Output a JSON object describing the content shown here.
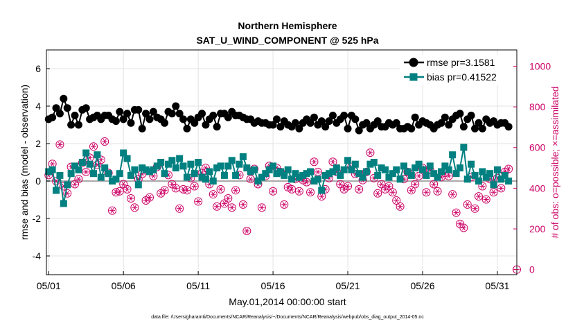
{
  "chart_data": {
    "type": "line",
    "title": "Northern Hemisphere",
    "subtitle": "SAT_U_WIND_COMPONENT @ 525 hPa",
    "xlabel": "May.01,2014 00:00:00 start",
    "ylabel_left": "rmse and bias (model - observation)",
    "ylabel_right": "# of obs: o=possible; ×=assimilated",
    "footnote": "data file: /Users/gharamti/Documents/NCAR/Reanalysis/~/Documents/NCAR/Reanalysis/webpub/obs_diag_output_2014-05.nc",
    "xlim": [
      0.85,
      32.3
    ],
    "x_ticks": [
      1,
      6,
      11,
      16,
      21,
      26,
      31
    ],
    "x_tick_labels": [
      "05/01",
      "05/06",
      "05/11",
      "05/16",
      "05/21",
      "05/26",
      "05/31"
    ],
    "ylim_left": [
      -5,
      7
    ],
    "y_ticks_left": [
      -4,
      -2,
      0,
      2,
      4,
      6
    ],
    "ylim_right": [
      -25,
      1080
    ],
    "y_ticks_right": [
      0,
      200,
      400,
      600,
      800,
      1000
    ],
    "grid": true,
    "legend_position": "top-right",
    "colors": {
      "rmse": "#000000",
      "bias": "#008080",
      "obs": "#cc0066",
      "zero_line": "#aaaaaa"
    },
    "series": [
      {
        "name": "rmse pr=3.1581",
        "axis": "left",
        "marker": "circle",
        "x": [
          1.0,
          1.25,
          1.5,
          1.75,
          2.0,
          2.25,
          2.5,
          2.75,
          3.0,
          3.25,
          3.5,
          3.75,
          4.0,
          4.25,
          4.5,
          4.75,
          5.0,
          5.25,
          5.5,
          5.75,
          6.0,
          6.25,
          6.5,
          6.75,
          7.0,
          7.25,
          7.5,
          7.75,
          8.0,
          8.25,
          8.5,
          8.75,
          9.0,
          9.25,
          9.5,
          9.75,
          10.0,
          10.25,
          10.5,
          10.75,
          11.0,
          11.25,
          11.5,
          11.75,
          12.0,
          12.25,
          12.5,
          12.75,
          13.0,
          13.25,
          13.5,
          13.75,
          14.0,
          14.25,
          14.5,
          14.75,
          15.0,
          15.25,
          15.5,
          15.75,
          16.0,
          16.25,
          16.5,
          16.75,
          17.0,
          17.25,
          17.5,
          17.75,
          18.0,
          18.25,
          18.5,
          18.75,
          19.0,
          19.25,
          19.5,
          19.75,
          20.0,
          20.25,
          20.5,
          20.75,
          21.0,
          21.25,
          21.5,
          21.75,
          22.0,
          22.25,
          22.5,
          22.75,
          23.0,
          23.25,
          23.5,
          23.75,
          24.0,
          24.25,
          24.5,
          24.75,
          25.0,
          25.25,
          25.5,
          25.75,
          26.0,
          26.25,
          26.5,
          26.75,
          27.0,
          27.25,
          27.5,
          27.75,
          28.0,
          28.25,
          28.5,
          28.75,
          29.0,
          29.25,
          29.5,
          29.75,
          30.0,
          30.25,
          30.5,
          30.75,
          31.0,
          31.25,
          31.5,
          31.75
        ],
        "values": [
          3.3,
          3.4,
          3.9,
          3.6,
          4.4,
          3.9,
          3.0,
          3.5,
          3.0,
          3.8,
          3.9,
          3.3,
          3.4,
          3.5,
          3.3,
          3.5,
          3.5,
          3.3,
          3.2,
          3.7,
          3.3,
          3.6,
          3.1,
          3.8,
          3.8,
          2.8,
          3.6,
          3.3,
          3.7,
          3.4,
          3.3,
          3.1,
          3.7,
          3.6,
          4.0,
          3.6,
          3.3,
          2.8,
          3.3,
          3.1,
          3.4,
          3.6,
          3.0,
          3.3,
          3.5,
          2.9,
          3.6,
          3.6,
          3.4,
          3.7,
          3.5,
          3.5,
          3.4,
          3.3,
          3.3,
          3.1,
          3.2,
          3.1,
          3.1,
          3.0,
          3.0,
          3.3,
          2.9,
          3.2,
          3.0,
          2.9,
          3.1,
          2.8,
          3.1,
          3.3,
          3.1,
          3.4,
          3.0,
          3.2,
          2.9,
          3.2,
          3.5,
          3.1,
          3.3,
          3.5,
          2.8,
          3.5,
          3.3,
          2.7,
          3.0,
          3.1,
          2.8,
          3.0,
          3.2,
          2.9,
          2.9,
          3.1,
          3.0,
          3.1,
          2.8,
          2.8,
          2.9,
          2.8,
          3.4,
          3.0,
          3.2,
          3.1,
          3.0,
          2.8,
          3.0,
          3.1,
          3.4,
          3.0,
          3.3,
          3.5,
          3.6,
          2.9,
          3.3,
          3.5,
          2.8,
          3.1,
          2.8,
          3.3,
          3.1,
          3.2,
          3.0,
          3.1,
          3.1,
          2.9
        ]
      },
      {
        "name": "bias pr=0.41522",
        "axis": "left",
        "marker": "square",
        "x": [
          1.0,
          1.25,
          1.5,
          1.75,
          2.0,
          2.25,
          2.5,
          2.75,
          3.0,
          3.25,
          3.5,
          3.75,
          4.0,
          4.25,
          4.5,
          4.75,
          5.0,
          5.25,
          5.5,
          5.75,
          6.0,
          6.25,
          6.5,
          6.75,
          7.0,
          7.25,
          7.5,
          7.75,
          8.0,
          8.25,
          8.5,
          8.75,
          9.0,
          9.25,
          9.5,
          9.75,
          10.0,
          10.25,
          10.5,
          10.75,
          11.0,
          11.25,
          11.5,
          11.75,
          12.0,
          12.25,
          12.5,
          12.75,
          13.0,
          13.25,
          13.5,
          13.75,
          14.0,
          14.25,
          14.5,
          14.75,
          15.0,
          15.25,
          15.5,
          15.75,
          16.0,
          16.25,
          16.5,
          16.75,
          17.0,
          17.25,
          17.5,
          17.75,
          18.0,
          18.25,
          18.5,
          18.75,
          19.0,
          19.25,
          19.5,
          19.75,
          20.0,
          20.25,
          20.5,
          20.75,
          21.0,
          21.25,
          21.5,
          21.75,
          22.0,
          22.25,
          22.5,
          22.75,
          23.0,
          23.25,
          23.5,
          23.75,
          24.0,
          24.25,
          24.5,
          24.75,
          25.0,
          25.25,
          25.5,
          25.75,
          26.0,
          26.25,
          26.5,
          26.75,
          27.0,
          27.25,
          27.5,
          27.75,
          28.0,
          28.25,
          28.5,
          28.75,
          29.0,
          29.25,
          29.5,
          29.75,
          30.0,
          30.25,
          30.5,
          30.75,
          31.0,
          31.25,
          31.5,
          31.75
        ],
        "values": [
          0.5,
          0.6,
          -0.5,
          0.3,
          -1.2,
          -0.2,
          0.4,
          0.8,
          0.6,
          1.0,
          1.5,
          0.9,
          0.4,
          1.4,
          0.2,
          0.7,
          0.4,
          0.0,
          0.1,
          0.4,
          1.5,
          1.2,
          0.3,
          0.6,
          -0.2,
          0.7,
          0.6,
          0.5,
          0.6,
          0.8,
          1.0,
          0.4,
          0.9,
          1.1,
          0.7,
          1.2,
          0.8,
          0.2,
          0.9,
          0.4,
          1.0,
          0.2,
          0.1,
          0.5,
          0.0,
          0.7,
          0.8,
          0.3,
          0.8,
          1.1,
          0.3,
          0.9,
          1.3,
          0.7,
          0.5,
          0.6,
          0.0,
          0.2,
          0.4,
          0.6,
          0.8,
          0.4,
          0.5,
          0.3,
          0.6,
          0.1,
          0.4,
          0.2,
          0.3,
          0.4,
          0.5,
          0.0,
          0.1,
          -0.5,
          0.3,
          0.4,
          0.5,
          0.7,
          0.3,
          0.6,
          1.1,
          0.6,
          0.9,
          0.4,
          0.2,
          0.5,
          0.9,
          1.0,
          0.3,
          0.7,
          0.6,
          0.2,
          0.4,
          0.6,
          0.1,
          0.8,
          0.5,
          0.3,
          0.7,
          0.9,
          0.6,
          0.3,
          0.8,
          0.4,
          0.2,
          0.5,
          0.8,
          0.6,
          1.4,
          0.4,
          0.7,
          1.8,
          0.1,
          0.9,
          0.3,
          0.0,
          0.5,
          0.2,
          0.4,
          -0.2,
          0.6,
          0.1,
          0.3,
          0.0
        ]
      },
      {
        "name": "obs possible",
        "axis": "right",
        "marker": "circle-open",
        "x": [
          1.0,
          1.25,
          1.5,
          1.75,
          2.0,
          2.25,
          2.5,
          2.75,
          3.0,
          3.25,
          3.5,
          3.75,
          4.0,
          4.25,
          4.5,
          4.75,
          5.0,
          5.25,
          5.5,
          5.75,
          6.0,
          6.25,
          6.5,
          6.75,
          7.0,
          7.25,
          7.5,
          7.75,
          8.0,
          8.25,
          8.5,
          8.75,
          9.0,
          9.25,
          9.5,
          9.75,
          10.0,
          10.25,
          10.5,
          10.75,
          11.0,
          11.25,
          11.5,
          11.75,
          12.0,
          12.25,
          12.5,
          12.75,
          13.0,
          13.25,
          13.5,
          13.75,
          14.0,
          14.25,
          14.5,
          14.75,
          15.0,
          15.25,
          15.5,
          15.75,
          16.0,
          16.25,
          16.5,
          16.75,
          17.0,
          17.25,
          17.5,
          17.75,
          18.0,
          18.25,
          18.5,
          18.75,
          19.0,
          19.25,
          19.5,
          19.75,
          20.0,
          20.25,
          20.5,
          20.75,
          21.0,
          21.25,
          21.5,
          21.75,
          22.0,
          22.25,
          22.5,
          22.75,
          23.0,
          23.25,
          23.5,
          23.75,
          24.0,
          24.25,
          24.5,
          24.75,
          25.0,
          25.25,
          25.5,
          25.75,
          26.0,
          26.25,
          26.5,
          26.75,
          27.0,
          27.25,
          27.5,
          27.75,
          28.0,
          28.25,
          28.5,
          28.75,
          29.0,
          29.25,
          29.5,
          29.75,
          30.0,
          30.25,
          30.5,
          30.75,
          31.0,
          31.25,
          31.5,
          31.75
        ],
        "values": [
          465,
          520,
          435,
          615,
          410,
          375,
          505,
          420,
          445,
          525,
          480,
          550,
          605,
          515,
          540,
          630,
          475,
          290,
          380,
          385,
          420,
          395,
          350,
          305,
          445,
          470,
          340,
          355,
          460,
          505,
          375,
          390,
          465,
          420,
          400,
          300,
          395,
          390,
          450,
          410,
          335,
          475,
          500,
          420,
          370,
          310,
          395,
          325,
          350,
          305,
          390,
          465,
          320,
          190,
          445,
          495,
          420,
          305,
          460,
          510,
          385,
          500,
          480,
          320,
          405,
          395,
          445,
          385,
          440,
          430,
          380,
          530,
          480,
          360,
          395,
          450,
          530,
          480,
          420,
          395,
          410,
          505,
          470,
          395,
          440,
          480,
          575,
          450,
          375,
          420,
          395,
          410,
          380,
          340,
          310,
          445,
          480,
          390,
          420,
          460,
          500,
          380,
          490,
          420,
          385,
          455,
          475,
          460,
          370,
          280,
          225,
          205,
          320,
          455,
          300,
          360,
          410,
          345,
          445,
          380,
          450,
          400,
          480,
          495
        ]
      },
      {
        "name": "obs assimilated",
        "axis": "right",
        "marker": "asterisk",
        "x": [
          1.0,
          1.25,
          1.5,
          1.75,
          2.0,
          2.25,
          2.5,
          2.75,
          3.0,
          3.25,
          3.5,
          3.75,
          4.0,
          4.25,
          4.5,
          4.75,
          5.0,
          5.25,
          5.5,
          5.75,
          6.0,
          6.25,
          6.5,
          6.75,
          7.0,
          7.25,
          7.5,
          7.75,
          8.0,
          8.25,
          8.5,
          8.75,
          9.0,
          9.25,
          9.5,
          9.75,
          10.0,
          10.25,
          10.5,
          10.75,
          11.0,
          11.25,
          11.5,
          11.75,
          12.0,
          12.25,
          12.5,
          12.75,
          13.0,
          13.25,
          13.5,
          13.75,
          14.0,
          14.25,
          14.5,
          14.75,
          15.0,
          15.25,
          15.5,
          15.75,
          16.0,
          16.25,
          16.5,
          16.75,
          17.0,
          17.25,
          17.5,
          17.75,
          18.0,
          18.25,
          18.5,
          18.75,
          19.0,
          19.25,
          19.5,
          19.75,
          20.0,
          20.25,
          20.5,
          20.75,
          21.0,
          21.25,
          21.5,
          21.75,
          22.0,
          22.25,
          22.5,
          22.75,
          23.0,
          23.25,
          23.5,
          23.75,
          24.0,
          24.25,
          24.5,
          24.75,
          25.0,
          25.25,
          25.5,
          25.75,
          26.0,
          26.25,
          26.5,
          26.75,
          27.0,
          27.25,
          27.5,
          27.75,
          28.0,
          28.25,
          28.5,
          28.75,
          29.0,
          29.25,
          29.5,
          29.75,
          30.0,
          30.25,
          30.5,
          30.75,
          31.0,
          31.25,
          31.5,
          31.75
        ],
        "values": [
          465,
          520,
          435,
          615,
          410,
          375,
          505,
          420,
          445,
          525,
          480,
          550,
          605,
          515,
          540,
          630,
          475,
          290,
          380,
          385,
          420,
          395,
          350,
          305,
          445,
          470,
          340,
          355,
          460,
          505,
          375,
          390,
          465,
          420,
          400,
          300,
          395,
          390,
          450,
          410,
          335,
          475,
          500,
          420,
          370,
          310,
          395,
          325,
          350,
          305,
          390,
          465,
          320,
          190,
          445,
          495,
          420,
          305,
          460,
          510,
          385,
          500,
          480,
          320,
          405,
          395,
          445,
          385,
          440,
          430,
          380,
          530,
          480,
          360,
          395,
          450,
          530,
          480,
          420,
          395,
          410,
          505,
          470,
          395,
          440,
          480,
          575,
          450,
          375,
          420,
          395,
          410,
          380,
          340,
          310,
          445,
          480,
          390,
          420,
          460,
          500,
          380,
          490,
          420,
          385,
          455,
          475,
          460,
          370,
          280,
          225,
          205,
          320,
          455,
          300,
          360,
          410,
          345,
          445,
          380,
          450,
          400,
          480,
          495
        ]
      }
    ],
    "extra_point": {
      "name": "obs zero marker",
      "axis": "right",
      "x": 32.3,
      "value": 0
    }
  }
}
